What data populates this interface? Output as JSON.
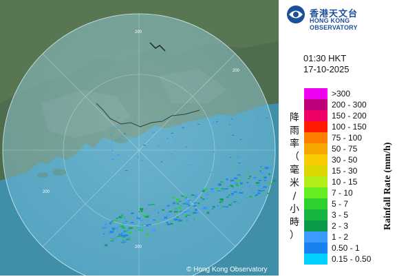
{
  "header": {
    "org_name_cn": "香港天文台",
    "org_name_en": "HONG KONG OBSERVATORY"
  },
  "timestamp": {
    "time": "01:30 HKT",
    "date": "17-10-2025"
  },
  "legend": {
    "title_cn": "降雨率（毫米/小時）",
    "title_en": "Rainfall Rate (mm/h)",
    "items": [
      {
        "label": ">300",
        "color": "#f000f0"
      },
      {
        "label": "200 - 300",
        "color": "#c0007a"
      },
      {
        "label": "150 - 200",
        "color": "#ee0066"
      },
      {
        "label": "100 - 150",
        "color": "#ff1a00"
      },
      {
        "label": "75 - 100",
        "color": "#ff7d00"
      },
      {
        "label": "50 - 75",
        "color": "#f5a700"
      },
      {
        "label": "30 - 50",
        "color": "#f8cc00"
      },
      {
        "label": "15 - 30",
        "color": "#dcd600"
      },
      {
        "label": "10 - 15",
        "color": "#b3ee1c"
      },
      {
        "label": "7 - 10",
        "color": "#66ee22"
      },
      {
        "label": "5 - 7",
        "color": "#2ed02e"
      },
      {
        "label": "3 - 5",
        "color": "#16b440"
      },
      {
        "label": "2 - 3",
        "color": "#0a9a4a"
      },
      {
        "label": "1 - 2",
        "color": "#3b9bff"
      },
      {
        "label": "0.50 - 1",
        "color": "#1a82f0"
      },
      {
        "label": "0.15 - 0.50",
        "color": "#00d0ff"
      }
    ]
  },
  "map": {
    "range_rings": [
      {
        "label": "200"
      },
      {
        "label": "200"
      },
      {
        "label": "200"
      },
      {
        "label": "200"
      }
    ],
    "copyright": "© Hong Kong Observatory"
  }
}
